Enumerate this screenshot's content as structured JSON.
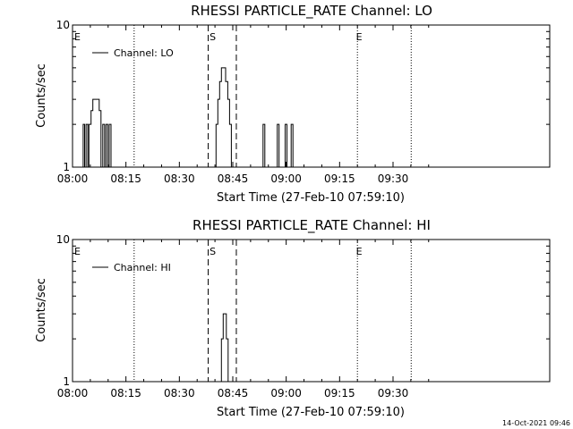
{
  "footer": {
    "timestamp": "14-Oct-2021 09:46"
  },
  "chart_data": [
    {
      "type": "line",
      "title": "RHESSI PARTICLE_RATE Channel: LO",
      "xlabel": "Start Time (27-Feb-10 07:59:10)",
      "ylabel": "Counts/sec",
      "yscale": "log",
      "ylim": [
        1,
        10
      ],
      "yticks": [
        "1",
        "10"
      ],
      "xlim_min": [
        0,
        134
      ],
      "xticks": [
        {
          "t": 0,
          "label": "08:00"
        },
        {
          "t": 15,
          "label": "08:15"
        },
        {
          "t": 30,
          "label": "08:30"
        },
        {
          "t": 45,
          "label": "08:45"
        },
        {
          "t": 60,
          "label": "09:00"
        },
        {
          "t": 75,
          "label": "09:15"
        },
        {
          "t": 90,
          "label": "09:30"
        }
      ],
      "series": [
        {
          "name": "Channel: LO",
          "steps": [
            [
              2.5,
              1
            ],
            [
              3.0,
              2
            ],
            [
              3.4,
              1
            ],
            [
              3.8,
              2
            ],
            [
              4.3,
              1
            ],
            [
              4.6,
              2
            ],
            [
              5.2,
              2.5
            ],
            [
              5.7,
              3
            ],
            [
              7.5,
              2.5
            ],
            [
              8.0,
              1
            ],
            [
              8.5,
              2
            ],
            [
              9.0,
              1
            ],
            [
              9.4,
              2
            ],
            [
              9.9,
              1
            ],
            [
              10.3,
              2
            ],
            [
              10.8,
              1
            ],
            [
              39.8,
              1
            ],
            [
              40.3,
              2
            ],
            [
              40.8,
              3
            ],
            [
              41.3,
              4
            ],
            [
              41.8,
              5
            ],
            [
              43.0,
              4
            ],
            [
              43.6,
              3
            ],
            [
              44.1,
              2
            ],
            [
              44.6,
              1
            ],
            [
              53.5,
              2
            ],
            [
              54.0,
              1
            ],
            [
              57.5,
              2
            ],
            [
              58.0,
              1
            ],
            [
              59.7,
              2
            ],
            [
              60.2,
              1
            ],
            [
              61.4,
              2
            ],
            [
              61.9,
              1
            ]
          ]
        }
      ],
      "annotations": {
        "markers": [
          {
            "label": "E",
            "t": 0.5
          },
          {
            "label": "S",
            "t": 38.5
          },
          {
            "label": "E",
            "t": 79.6
          }
        ],
        "dotted_lines": [
          17.3,
          80.0,
          95.1
        ],
        "dashed_lines": [
          38.1,
          46.0
        ]
      }
    },
    {
      "type": "line",
      "title": "RHESSI PARTICLE_RATE Channel: HI",
      "xlabel": "Start Time (27-Feb-10 07:59:10)",
      "ylabel": "Counts/sec",
      "yscale": "log",
      "ylim": [
        1,
        10
      ],
      "yticks": [
        "1",
        "10"
      ],
      "xlim_min": [
        0,
        134
      ],
      "xticks": [
        {
          "t": 0,
          "label": "08:00"
        },
        {
          "t": 15,
          "label": "08:15"
        },
        {
          "t": 30,
          "label": "08:30"
        },
        {
          "t": 45,
          "label": "08:45"
        },
        {
          "t": 60,
          "label": "09:00"
        },
        {
          "t": 75,
          "label": "09:15"
        },
        {
          "t": 90,
          "label": "09:30"
        }
      ],
      "series": [
        {
          "name": "Channel: HI",
          "steps": [
            [
              41.3,
              1
            ],
            [
              41.8,
              2
            ],
            [
              42.3,
              3
            ],
            [
              43.2,
              2
            ],
            [
              43.7,
              1
            ]
          ]
        }
      ],
      "annotations": {
        "markers": [
          {
            "label": "E",
            "t": 0.5
          },
          {
            "label": "S",
            "t": 38.5
          },
          {
            "label": "E",
            "t": 79.6
          }
        ],
        "dotted_lines": [
          17.3,
          80.0,
          95.1
        ],
        "dashed_lines": [
          38.1,
          46.0
        ]
      }
    }
  ]
}
